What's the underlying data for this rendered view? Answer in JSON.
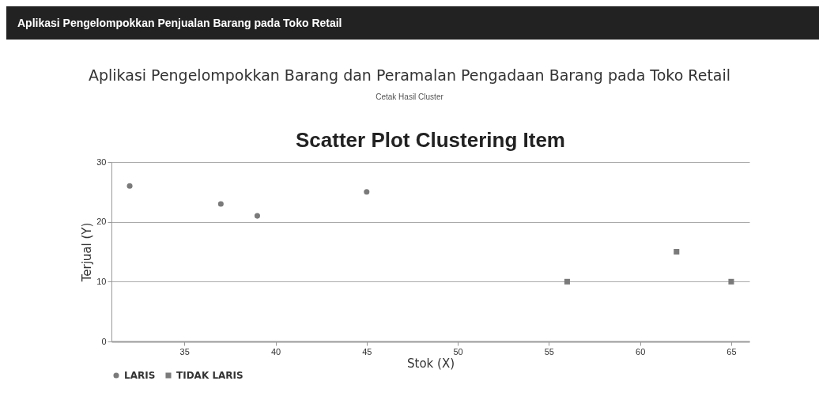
{
  "chart_data": {
    "type": "scatter",
    "title": "Scatter Plot Clustering Item",
    "xlabel": "Stok (X)",
    "ylabel": "Terjual (Y)",
    "annotations": [
      "Aplikasi Pengelompokkan Penjualan Barang pada Toko Retail",
      "Aplikasi Pengelompokkan Barang dan Peramalan Pengadaan Barang pada Toko Retail",
      "Cetak Hasil Cluster"
    ],
    "series": [
      {
        "name": "LARIS",
        "color": "#7a7a7a",
        "marker": "circle",
        "x": [
          32,
          37,
          39,
          45
        ],
        "values": [
          26,
          23,
          21,
          25
        ]
      },
      {
        "name": "TIDAK LARIS",
        "color": "#7a7a7a",
        "marker": "square",
        "x": [
          56,
          62,
          65
        ],
        "values": [
          10,
          15,
          10
        ]
      }
    ],
    "xlim": [
      31,
      66
    ],
    "xticks": [
      35,
      40,
      45,
      50,
      55,
      60,
      65
    ],
    "ylim": [
      0,
      30
    ],
    "yticks": [
      0,
      10,
      20,
      30
    ],
    "grid": "y",
    "legend": "bottom"
  }
}
